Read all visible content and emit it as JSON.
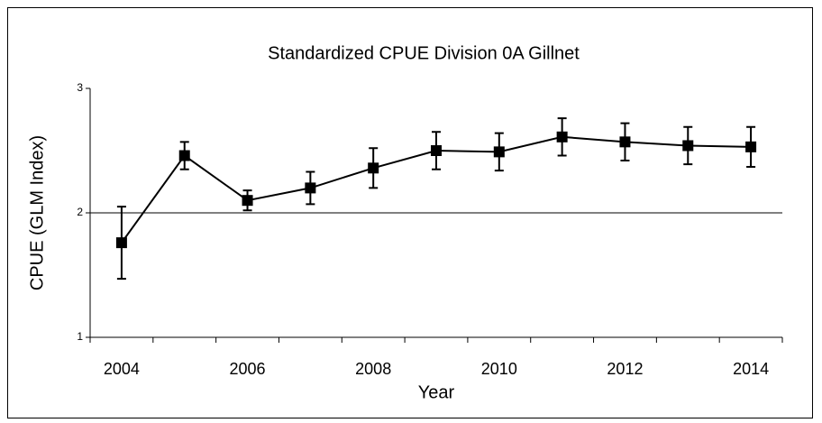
{
  "chart_data": {
    "type": "line",
    "title": "Standardized CPUE Division 0A Gillnet",
    "x_label": "Year",
    "y_label": "CPUE (GLM Index)",
    "categories": [
      "2004",
      null,
      "2006",
      null,
      "2008",
      null,
      "2010",
      null,
      "2012",
      null,
      "2014"
    ],
    "series": [
      {
        "name": "CPUE",
        "color": "#000000",
        "values": [
          1.76,
          2.46,
          2.1,
          2.2,
          2.36,
          2.5,
          2.49,
          2.61,
          2.57,
          2.54,
          2.53
        ],
        "errors": [
          0.29,
          0.11,
          0.08,
          0.13,
          0.16,
          0.15,
          0.15,
          0.15,
          0.15,
          0.15,
          0.16
        ]
      }
    ],
    "ylim": [
      1,
      3
    ],
    "yticks": [
      1,
      2,
      3
    ],
    "grid": true
  }
}
